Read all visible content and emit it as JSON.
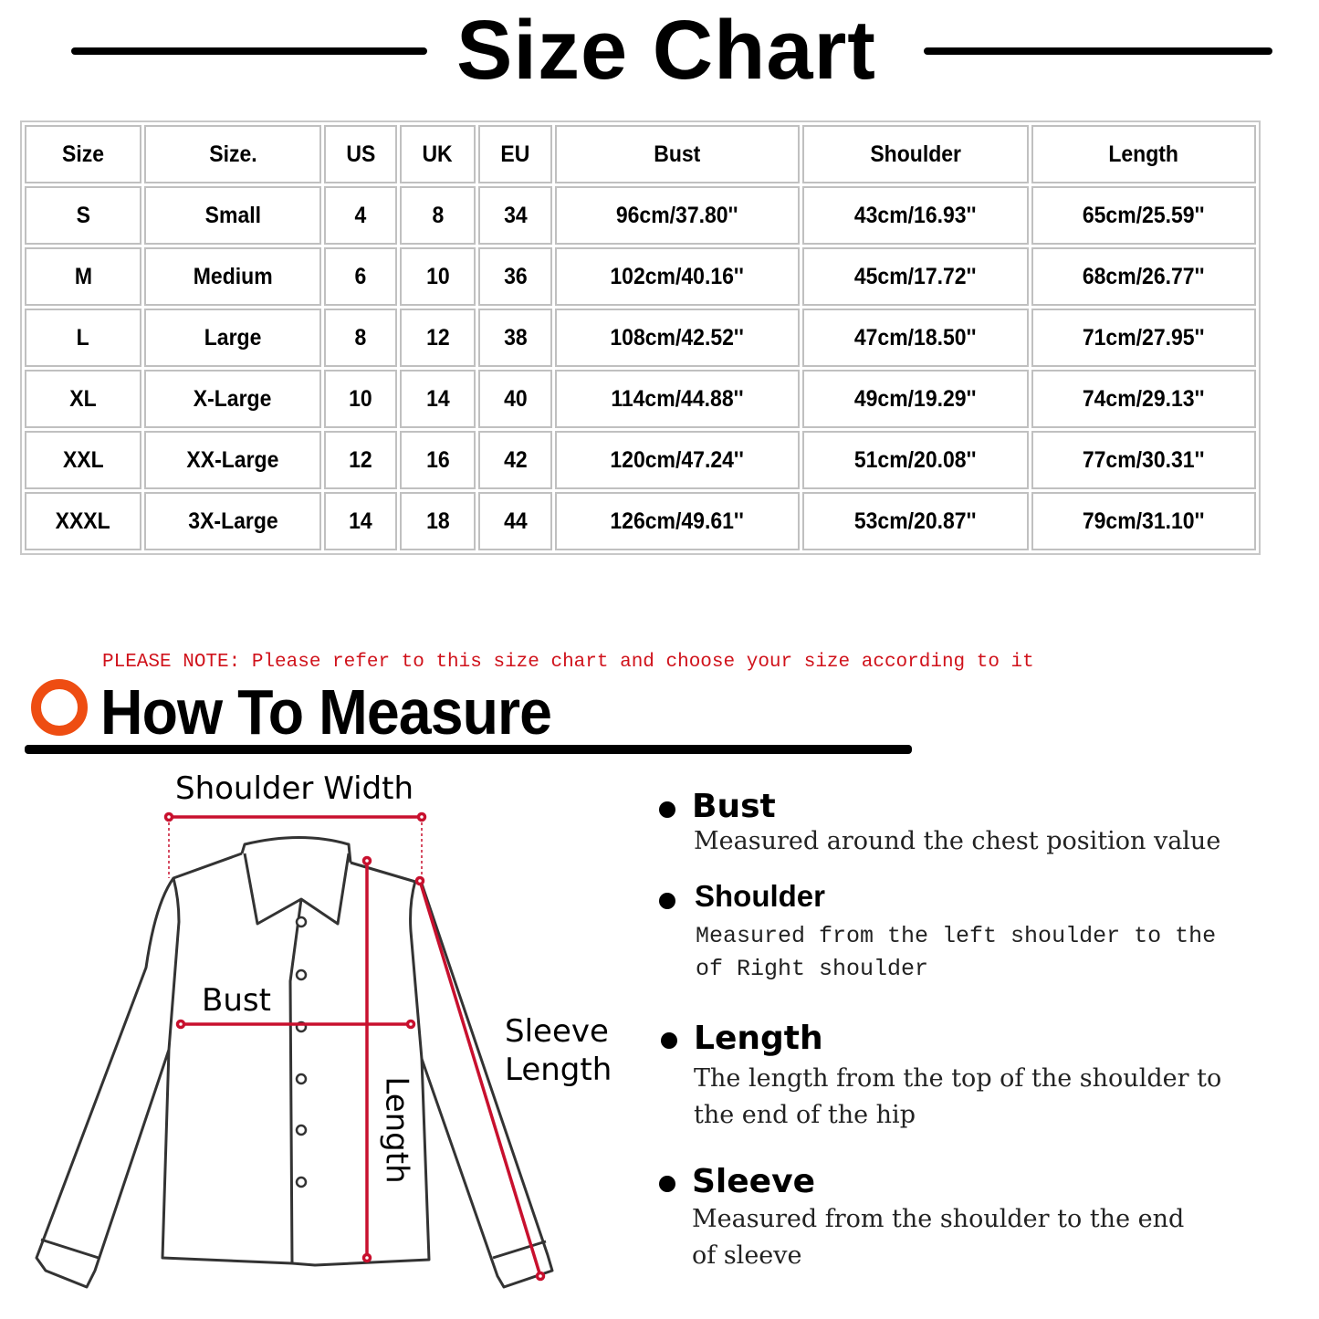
{
  "title": "Size Chart",
  "table": {
    "headers": [
      "Size",
      "Size.",
      "US",
      "UK",
      "EU",
      "Bust",
      "Shoulder",
      "Length"
    ],
    "rows": [
      [
        "S",
        "Small",
        "4",
        "8",
        "34",
        "96cm/37.80''",
        "43cm/16.93''",
        "65cm/25.59''"
      ],
      [
        "M",
        "Medium",
        "6",
        "10",
        "36",
        "102cm/40.16''",
        "45cm/17.72''",
        "68cm/26.77''"
      ],
      [
        "L",
        "Large",
        "8",
        "12",
        "38",
        "108cm/42.52''",
        "47cm/18.50''",
        "71cm/27.95''"
      ],
      [
        "XL",
        "X-Large",
        "10",
        "14",
        "40",
        "114cm/44.88''",
        "49cm/19.29''",
        "74cm/29.13''"
      ],
      [
        "XXL",
        "XX-Large",
        "12",
        "16",
        "42",
        "120cm/47.24''",
        "51cm/20.08''",
        "77cm/30.31''"
      ],
      [
        "XXXL",
        "3X-Large",
        "14",
        "18",
        "44",
        "126cm/49.61''",
        "53cm/20.87''",
        "79cm/31.10''"
      ]
    ]
  },
  "note": "PLEASE NOTE: Please refer to this size chart and choose your size according to it",
  "how_to_measure": {
    "title": "How To Measure",
    "accent_color": "#ee4d12",
    "note_color": "#d0121b",
    "diagram_labels": {
      "shoulder_width": "Shoulder Width",
      "bust": "Bust",
      "sleeve_length_1": "Sleeve",
      "sleeve_length_2": "Length",
      "length": "Length"
    },
    "items": [
      {
        "name": "Bust",
        "desc": [
          "Measured around the chest position value"
        ]
      },
      {
        "name": "Shoulder",
        "desc": [
          "Measured from the left shoulder to the",
          "of Right shoulder"
        ]
      },
      {
        "name": "Length",
        "desc": [
          "The length from the top of the shoulder to",
          "the end of the hip"
        ]
      },
      {
        "name": "Sleeve",
        "desc": [
          "Measured from the shoulder to the end",
          "of sleeve"
        ]
      }
    ]
  }
}
